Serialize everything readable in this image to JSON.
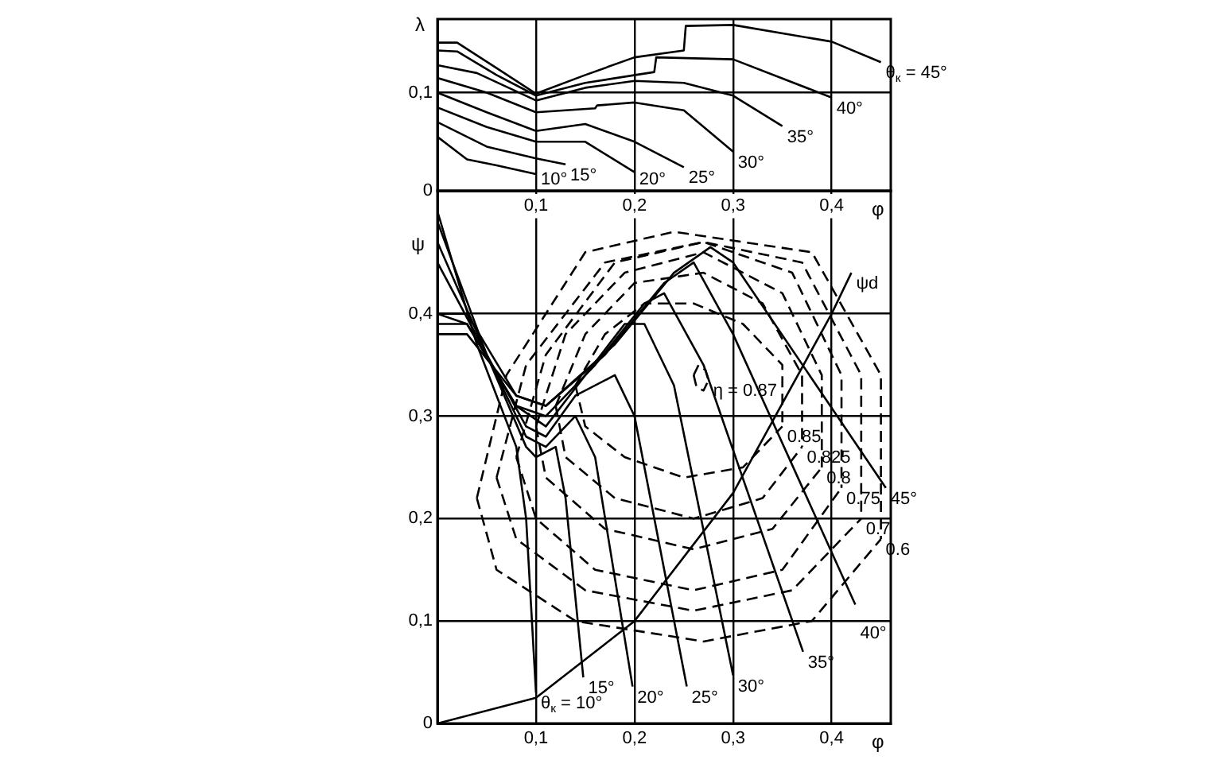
{
  "chart_data": [
    {
      "type": "line",
      "xlabel": "φ",
      "ylabel": "λ",
      "xlim": [
        0,
        0.46
      ],
      "ylim": [
        0,
        0.175
      ],
      "xticks": [
        {
          "value": 0.1,
          "label": "0,1"
        },
        {
          "value": 0.2,
          "label": "0,2"
        },
        {
          "value": 0.3,
          "label": "0,3"
        },
        {
          "value": 0.4,
          "label": "0,4"
        }
      ],
      "yticks": [
        0,
        {
          "value": 0.1,
          "label": "0,1"
        }
      ],
      "grid": true,
      "legend": false,
      "marker": "none",
      "line_style": "solid",
      "series": [
        {
          "name": "θ$_{к}$ = 45°",
          "color": "#000000",
          "x": [
            0,
            0.02,
            0.06,
            0.1,
            0.15,
            0.2,
            0.25,
            0.252,
            0.3,
            0.4,
            0.45
          ],
          "values": [
            0.151,
            0.151,
            0.125,
            0.099,
            0.118,
            0.136,
            0.143,
            0.168,
            0.169,
            0.152,
            0.131
          ]
        },
        {
          "name": "40°",
          "color": "#000000",
          "x": [
            0,
            0.02,
            0.06,
            0.1,
            0.15,
            0.22,
            0.222,
            0.3,
            0.4
          ],
          "values": [
            0.143,
            0.142,
            0.118,
            0.097,
            0.11,
            0.121,
            0.136,
            0.134,
            0.095
          ]
        },
        {
          "name": "35°",
          "color": "#000000",
          "x": [
            0,
            0.04,
            0.1,
            0.15,
            0.2,
            0.25,
            0.3,
            0.35
          ],
          "values": [
            0.128,
            0.12,
            0.092,
            0.105,
            0.112,
            0.11,
            0.097,
            0.066
          ]
        },
        {
          "name": "30°",
          "color": "#000000",
          "x": [
            0,
            0.05,
            0.1,
            0.16,
            0.162,
            0.2,
            0.25,
            0.3
          ],
          "values": [
            0.115,
            0.1,
            0.08,
            0.084,
            0.087,
            0.09,
            0.082,
            0.04
          ]
        },
        {
          "name": "25°",
          "color": "#000000",
          "x": [
            0,
            0.05,
            0.1,
            0.15,
            0.2,
            0.25
          ],
          "values": [
            0.1,
            0.08,
            0.061,
            0.068,
            0.05,
            0.024
          ]
        },
        {
          "name": "20°",
          "color": "#000000",
          "x": [
            0,
            0.05,
            0.1,
            0.15,
            0.2
          ],
          "values": [
            0.085,
            0.065,
            0.05,
            0.05,
            0.019
          ]
        },
        {
          "name": "15°",
          "color": "#000000",
          "x": [
            0,
            0.05,
            0.1,
            0.13
          ],
          "values": [
            0.07,
            0.045,
            0.033,
            0.027
          ]
        },
        {
          "name": "10°",
          "color": "#000000",
          "x": [
            0,
            0.03,
            0.06,
            0.1
          ],
          "values": [
            0.055,
            0.032,
            0.026,
            0.017
          ]
        }
      ]
    },
    {
      "type": "line",
      "xlabel": "φ",
      "ylabel": "ψ",
      "xlim": [
        0,
        0.46
      ],
      "ylim": [
        0,
        0.52
      ],
      "xticks": [
        {
          "value": 0.1,
          "label": "0,1"
        },
        {
          "value": 0.2,
          "label": "0,2"
        },
        {
          "value": 0.3,
          "label": "0,3"
        },
        {
          "value": 0.4,
          "label": "0,4"
        }
      ],
      "yticks": [
        0,
        {
          "value": 0.1,
          "label": "0,1"
        },
        {
          "value": 0.2,
          "label": "0,2"
        },
        {
          "value": 0.3,
          "label": "0,3"
        },
        {
          "value": 0.4,
          "label": "0,4"
        }
      ],
      "grid": true,
      "legend": false,
      "marker": "none",
      "line_style": "solid",
      "series": [
        {
          "name": "θ$_{к}$ = 10°",
          "color": "#000000",
          "x": [
            0,
            0.04,
            0.08,
            0.09,
            0.1
          ],
          "values": [
            0.5,
            0.37,
            0.27,
            0.2,
            0.03
          ]
        },
        {
          "name": "15°",
          "color": "#000000",
          "x": [
            0,
            0.05,
            0.09,
            0.1,
            0.12,
            0.13,
            0.148
          ],
          "values": [
            0.49,
            0.36,
            0.27,
            0.26,
            0.27,
            0.22,
            0.045
          ]
        },
        {
          "name": "20°",
          "color": "#000000",
          "x": [
            0,
            0.05,
            0.09,
            0.11,
            0.14,
            0.16,
            0.198
          ],
          "values": [
            0.47,
            0.36,
            0.28,
            0.27,
            0.3,
            0.26,
            0.036
          ]
        },
        {
          "name": "25°",
          "color": "#000000",
          "x": [
            0,
            0.05,
            0.09,
            0.11,
            0.14,
            0.18,
            0.2,
            0.253
          ],
          "values": [
            0.45,
            0.36,
            0.29,
            0.28,
            0.32,
            0.34,
            0.3,
            0.036
          ]
        },
        {
          "name": "30°",
          "color": "#000000",
          "x": [
            0,
            0.03,
            0.08,
            0.11,
            0.15,
            0.19,
            0.21,
            0.24,
            0.3
          ],
          "values": [
            0.4,
            0.39,
            0.31,
            0.29,
            0.34,
            0.39,
            0.39,
            0.33,
            0.047
          ]
        },
        {
          "name": "35°",
          "color": "#000000",
          "x": [
            0,
            0.03,
            0.08,
            0.11,
            0.16,
            0.21,
            0.23,
            0.27,
            0.371
          ],
          "values": [
            0.39,
            0.39,
            0.31,
            0.3,
            0.35,
            0.41,
            0.42,
            0.35,
            0.07
          ]
        },
        {
          "name": "40°",
          "color": "#000000",
          "x": [
            0,
            0.03,
            0.08,
            0.11,
            0.17,
            0.23,
            0.26,
            0.3,
            0.424
          ],
          "values": [
            0.38,
            0.38,
            0.32,
            0.31,
            0.36,
            0.43,
            0.45,
            0.38,
            0.116
          ]
        },
        {
          "name": "45°",
          "color": "#000000",
          "x": [
            0,
            0.03,
            0.08,
            0.11,
            0.18,
            0.24,
            0.277,
            0.3,
            0.455
          ],
          "values": [
            0.4,
            0.4,
            0.32,
            0.31,
            0.37,
            0.44,
            0.465,
            0.45,
            0.23
          ]
        },
        {
          "name": "ψd",
          "color": "#000000",
          "x": [
            0,
            0.1,
            0.2,
            0.3,
            0.4,
            0.42
          ],
          "values": [
            0,
            0.025,
            0.1,
            0.225,
            0.4,
            0.44
          ]
        },
        {
          "color": "#000000",
          "line_style": "dashed",
          "x": [
            0.26,
            0.265,
            0.272,
            0.275
          ],
          "values": [
            0.34,
            0.35,
            0.345,
            0.335
          ]
        },
        {
          "name": "η = 0.87",
          "color": "#000000",
          "line_style": "dashed",
          "x": [
            0.26,
            0.263,
            0.27,
            0.275
          ],
          "values": [
            0.34,
            0.328,
            0.325,
            0.335
          ]
        },
        {
          "color": "#000000",
          "line_style": "dashed",
          "x": [
            0.14,
            0.17,
            0.21,
            0.26,
            0.31,
            0.35,
            0.35
          ],
          "values": [
            0.33,
            0.38,
            0.41,
            0.41,
            0.39,
            0.35,
            0.29
          ]
        },
        {
          "name": "0.85",
          "color": "#000000",
          "line_style": "dashed",
          "x": [
            0.14,
            0.15,
            0.19,
            0.25,
            0.31,
            0.35
          ],
          "values": [
            0.33,
            0.29,
            0.26,
            0.24,
            0.25,
            0.29
          ]
        },
        {
          "color": "#000000",
          "line_style": "dashed",
          "x": [
            0.12,
            0.15,
            0.2,
            0.27,
            0.33,
            0.37,
            0.37
          ],
          "values": [
            0.31,
            0.38,
            0.43,
            0.44,
            0.41,
            0.34,
            0.27
          ]
        },
        {
          "name": "0.825",
          "color": "#000000",
          "line_style": "dashed",
          "x": [
            0.12,
            0.13,
            0.18,
            0.26,
            0.33,
            0.37
          ],
          "values": [
            0.31,
            0.26,
            0.22,
            0.2,
            0.22,
            0.27
          ]
        },
        {
          "color": "#000000",
          "line_style": "dashed",
          "x": [
            0.1,
            0.13,
            0.19,
            0.27,
            0.35,
            0.39,
            0.39
          ],
          "values": [
            0.29,
            0.38,
            0.44,
            0.46,
            0.42,
            0.34,
            0.25
          ]
        },
        {
          "name": "0.8",
          "color": "#000000",
          "line_style": "dashed",
          "x": [
            0.1,
            0.11,
            0.17,
            0.26,
            0.34,
            0.39
          ],
          "values": [
            0.29,
            0.24,
            0.19,
            0.17,
            0.19,
            0.25
          ]
        },
        {
          "color": "#000000",
          "line_style": "dashed",
          "x": [
            0.08,
            0.11,
            0.18,
            0.27,
            0.36,
            0.41,
            0.41
          ],
          "values": [
            0.26,
            0.36,
            0.45,
            0.47,
            0.44,
            0.34,
            0.23
          ]
        },
        {
          "name": "0.75",
          "color": "#000000",
          "line_style": "dashed",
          "x": [
            0.08,
            0.1,
            0.16,
            0.26,
            0.35,
            0.41
          ],
          "values": [
            0.26,
            0.2,
            0.15,
            0.13,
            0.15,
            0.23
          ]
        },
        {
          "color": "#000000",
          "line_style": "dashed",
          "x": [
            0.06,
            0.09,
            0.17,
            0.27,
            0.37,
            0.43,
            0.43
          ],
          "values": [
            0.24,
            0.35,
            0.45,
            0.47,
            0.45,
            0.34,
            0.2
          ]
        },
        {
          "name": "0.7",
          "color": "#000000",
          "line_style": "dashed",
          "x": [
            0.06,
            0.08,
            0.15,
            0.26,
            0.36,
            0.43
          ],
          "values": [
            0.24,
            0.18,
            0.13,
            0.11,
            0.13,
            0.2
          ]
        },
        {
          "color": "#000000",
          "line_style": "dashed",
          "x": [
            0.04,
            0.07,
            0.15,
            0.24,
            0.38,
            0.45,
            0.45
          ],
          "values": [
            0.22,
            0.34,
            0.46,
            0.48,
            0.46,
            0.34,
            0.18
          ]
        },
        {
          "name": "0.6",
          "color": "#000000",
          "line_style": "dashed",
          "x": [
            0.04,
            0.06,
            0.14,
            0.27,
            0.38,
            0.45
          ],
          "values": [
            0.22,
            0.15,
            0.1,
            0.08,
            0.1,
            0.18
          ]
        }
      ]
    }
  ]
}
